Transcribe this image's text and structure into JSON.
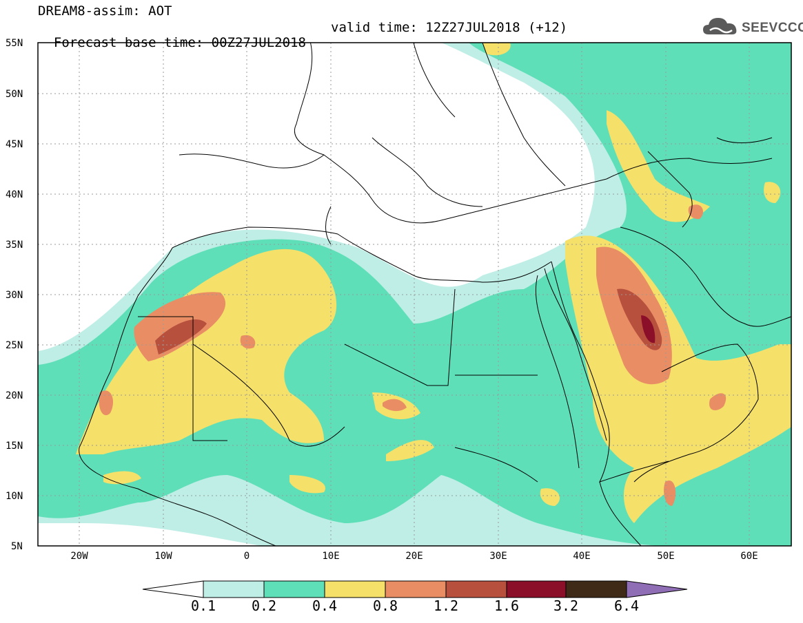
{
  "header": {
    "title": "DREAM8-assim: AOT",
    "base_time": "Forecast base time: 00Z27JUL2018",
    "valid_time": "valid time: 12Z27JUL2018 (+12)"
  },
  "logo": {
    "text": "SEEVCCC",
    "icon": "cloud-logo-icon"
  },
  "map": {
    "lat_labels": [
      "55N",
      "50N",
      "45N",
      "40N",
      "35N",
      "30N",
      "25N",
      "20N",
      "15N",
      "10N",
      "5N"
    ],
    "lon_labels": [
      "20W",
      "10W",
      "0",
      "10E",
      "20E",
      "30E",
      "40E",
      "50E",
      "60E"
    ],
    "grid": true
  },
  "colorbar": {
    "labels": [
      "0.1",
      "0.2",
      "0.4",
      "0.8",
      "1.2",
      "1.6",
      "3.2",
      "6.4"
    ],
    "colors": [
      "#ffffff",
      "#bfeee6",
      "#5fdfb8",
      "#f5e06a",
      "#e98e64",
      "#b8503e",
      "#8c0f2a",
      "#3f2a17",
      "#8f6eb6"
    ]
  }
}
